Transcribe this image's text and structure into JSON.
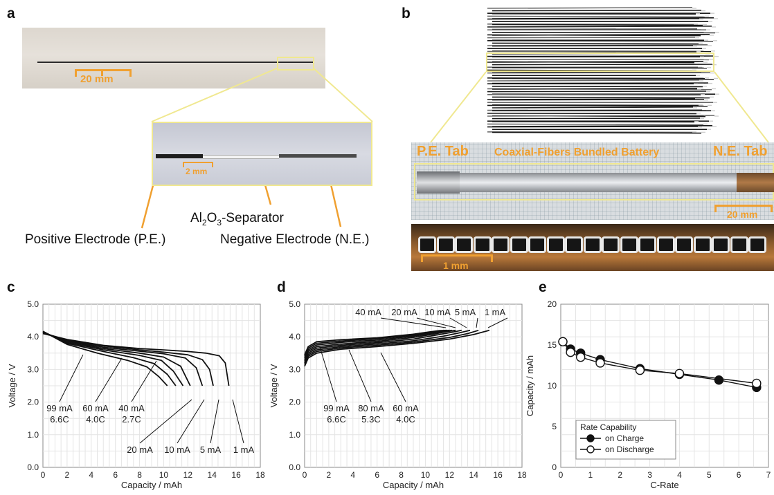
{
  "panels": {
    "a": {
      "letter": "a",
      "scale_top": "20 mm",
      "scale_zoom": "2 mm",
      "separator_prefix": "Al",
      "separator_sub1": "2",
      "separator_mid": "O",
      "separator_sub2": "3",
      "separator_suffix": "-Separator",
      "positive_label": "Positive Electrode (P.E.)",
      "negative_label": "Negative Electrode (N.E.)"
    },
    "b": {
      "letter": "b",
      "pe_tab": "P.E. Tab",
      "bundle_title": "Coaxial-Fibers Bundled Battery",
      "ne_tab": "N.E. Tab",
      "scale_strip": "20 mm",
      "scale_cross": "1 mm"
    },
    "c": {
      "letter": "c"
    },
    "d": {
      "letter": "d"
    },
    "e": {
      "letter": "e"
    }
  },
  "colors": {
    "accent_orange": "#f0a030",
    "zoom_box": "#f0e890",
    "plot_line": "#111111",
    "grid": "#e4e4e4"
  },
  "chart_data": [
    {
      "id": "c",
      "type": "line",
      "xlabel": "Capacity  /  mAh",
      "ylabel": "Voltage  /  V",
      "xlim": [
        0,
        18
      ],
      "ylim": [
        0,
        5
      ],
      "xticks": [
        "0",
        "2",
        "4",
        "6",
        "8",
        "10",
        "12",
        "14",
        "16",
        "18"
      ],
      "yticks": [
        "0.0",
        "1.0",
        "2.0",
        "3.0",
        "4.0",
        "5.0"
      ],
      "grid": true,
      "series": [
        {
          "name": "1 mA",
          "x": [
            0,
            2,
            5,
            8,
            10,
            12,
            13.5,
            14.6,
            15.1,
            15.4
          ],
          "y": [
            4.1,
            3.92,
            3.74,
            3.64,
            3.6,
            3.55,
            3.5,
            3.42,
            3.2,
            2.5
          ]
        },
        {
          "name": "5 mA",
          "x": [
            0,
            2,
            5,
            8,
            10,
            12,
            13.2,
            13.8,
            14.1
          ],
          "y": [
            4.12,
            3.9,
            3.72,
            3.6,
            3.53,
            3.45,
            3.3,
            3.0,
            2.5
          ]
        },
        {
          "name": "10 mA",
          "x": [
            0,
            2,
            5,
            8,
            10,
            11.8,
            12.7,
            13.2
          ],
          "y": [
            4.13,
            3.88,
            3.68,
            3.56,
            3.48,
            3.35,
            3.05,
            2.5
          ]
        },
        {
          "name": "20 mA",
          "x": [
            0,
            2,
            5,
            8,
            10,
            11.4,
            12.2
          ],
          "y": [
            4.14,
            3.86,
            3.64,
            3.5,
            3.38,
            3.1,
            2.5
          ]
        },
        {
          "name": "40 mA",
          "x": [
            0,
            2,
            5,
            8,
            9.8,
            10.8,
            11.6
          ],
          "y": [
            4.15,
            3.83,
            3.6,
            3.43,
            3.28,
            2.95,
            2.5
          ]
        },
        {
          "name": "60 mA",
          "x": [
            0,
            2,
            5,
            7.5,
            9.2,
            10.3,
            11.0
          ],
          "y": [
            4.16,
            3.8,
            3.55,
            3.36,
            3.18,
            2.85,
            2.5
          ]
        },
        {
          "name": "99 mA",
          "x": [
            0,
            2,
            4.5,
            7,
            8.6,
            9.6,
            10.3
          ],
          "y": [
            4.17,
            3.77,
            3.5,
            3.28,
            3.08,
            2.78,
            2.5
          ]
        }
      ],
      "annotations": [
        {
          "lines": [
            "99 mA",
            "6.6C"
          ]
        },
        {
          "lines": [
            "60 mA",
            "4.0C"
          ]
        },
        {
          "lines": [
            "40 mA",
            "2.7C"
          ]
        },
        {
          "lines": [
            "20 mA"
          ]
        },
        {
          "lines": [
            "10 mA"
          ]
        },
        {
          "lines": [
            "5 mA"
          ]
        },
        {
          "lines": [
            "1 mA"
          ]
        }
      ]
    },
    {
      "id": "d",
      "type": "line",
      "xlabel": "Capacity  /  mAh",
      "ylabel": "Voltage  /  V",
      "xlim": [
        0,
        18
      ],
      "ylim": [
        0,
        5
      ],
      "xticks": [
        "0",
        "2",
        "4",
        "6",
        "8",
        "10",
        "12",
        "14",
        "16",
        "18"
      ],
      "yticks": [
        "0.0",
        "1.0",
        "2.0",
        "3.0",
        "4.0",
        "5.0"
      ],
      "grid": true,
      "series": [
        {
          "name": "1 mA",
          "x": [
            0,
            0.3,
            1,
            3,
            6,
            9,
            12,
            14,
            15.3
          ],
          "y": [
            3.1,
            3.35,
            3.5,
            3.62,
            3.7,
            3.8,
            3.93,
            4.07,
            4.2
          ]
        },
        {
          "name": "5 mA",
          "x": [
            0,
            0.3,
            1,
            3,
            6,
            9,
            12,
            13.5,
            14.4
          ],
          "y": [
            3.15,
            3.4,
            3.55,
            3.66,
            3.74,
            3.84,
            3.98,
            4.1,
            4.2
          ]
        },
        {
          "name": "10 mA",
          "x": [
            0,
            0.3,
            1,
            3,
            6,
            9,
            11.5,
            12.8,
            13.7
          ],
          "y": [
            3.2,
            3.45,
            3.6,
            3.7,
            3.78,
            3.88,
            4.02,
            4.12,
            4.2
          ]
        },
        {
          "name": "20 mA",
          "x": [
            0,
            0.3,
            1,
            3,
            6,
            9,
            11,
            12.2,
            13.0
          ],
          "y": [
            3.25,
            3.5,
            3.65,
            3.74,
            3.82,
            3.93,
            4.06,
            4.14,
            4.2
          ]
        },
        {
          "name": "40 mA",
          "x": [
            0,
            0.3,
            1,
            3,
            6,
            9,
            10.8,
            11.8,
            12.5
          ],
          "y": [
            3.3,
            3.55,
            3.7,
            3.78,
            3.86,
            3.98,
            4.09,
            4.16,
            4.2
          ]
        },
        {
          "name": "60 mA",
          "x": [
            0,
            0.3,
            1,
            3,
            6,
            9,
            10.6,
            11.5,
            12.2
          ],
          "y": [
            3.35,
            3.6,
            3.75,
            3.83,
            3.9,
            4.02,
            4.11,
            4.17,
            4.2
          ]
        },
        {
          "name": "80 mA",
          "x": [
            0,
            0.3,
            1,
            3,
            6,
            9,
            10.4,
            11.3,
            12.0
          ],
          "y": [
            3.4,
            3.65,
            3.8,
            3.87,
            3.94,
            4.05,
            4.13,
            4.18,
            4.2
          ]
        },
        {
          "name": "99 mA",
          "x": [
            0,
            0.3,
            1,
            3,
            6,
            9,
            10.3,
            11.2,
            11.8
          ],
          "y": [
            3.45,
            3.7,
            3.85,
            3.91,
            3.97,
            4.08,
            4.15,
            4.19,
            4.2
          ]
        }
      ],
      "annotations": [
        {
          "lines": [
            "40 mA"
          ]
        },
        {
          "lines": [
            "20 mA"
          ]
        },
        {
          "lines": [
            "10 mA"
          ]
        },
        {
          "lines": [
            "5 mA"
          ]
        },
        {
          "lines": [
            "1 mA"
          ]
        },
        {
          "lines": [
            "99 mA",
            "6.6C"
          ]
        },
        {
          "lines": [
            "80 mA",
            "5.3C"
          ]
        },
        {
          "lines": [
            "60 mA",
            "4.0C"
          ]
        }
      ]
    },
    {
      "id": "e",
      "type": "scatter",
      "xlabel": "C-Rate",
      "ylabel": "Capacity  /  mAh",
      "xlim": [
        0,
        7
      ],
      "ylim": [
        0,
        20
      ],
      "xticks": [
        "0",
        "1",
        "2",
        "3",
        "4",
        "5",
        "6",
        "7"
      ],
      "yticks": [
        "0",
        "5",
        "10",
        "15",
        "20"
      ],
      "grid": true,
      "legend_title": "Rate Capability",
      "legend_position": "bottom-left",
      "series": [
        {
          "name": "on Charge",
          "marker": "filled-circle",
          "x": [
            0.07,
            0.33,
            0.67,
            1.33,
            2.67,
            4.0,
            5.33,
            6.6
          ],
          "y": [
            15.4,
            14.5,
            14.0,
            13.2,
            12.1,
            11.4,
            10.7,
            9.8
          ]
        },
        {
          "name": "on Discharge",
          "marker": "open-circle",
          "x": [
            0.07,
            0.33,
            0.67,
            1.33,
            2.67,
            4.0,
            6.6
          ],
          "y": [
            15.4,
            14.1,
            13.5,
            12.8,
            11.9,
            11.5,
            10.3
          ]
        }
      ]
    }
  ]
}
